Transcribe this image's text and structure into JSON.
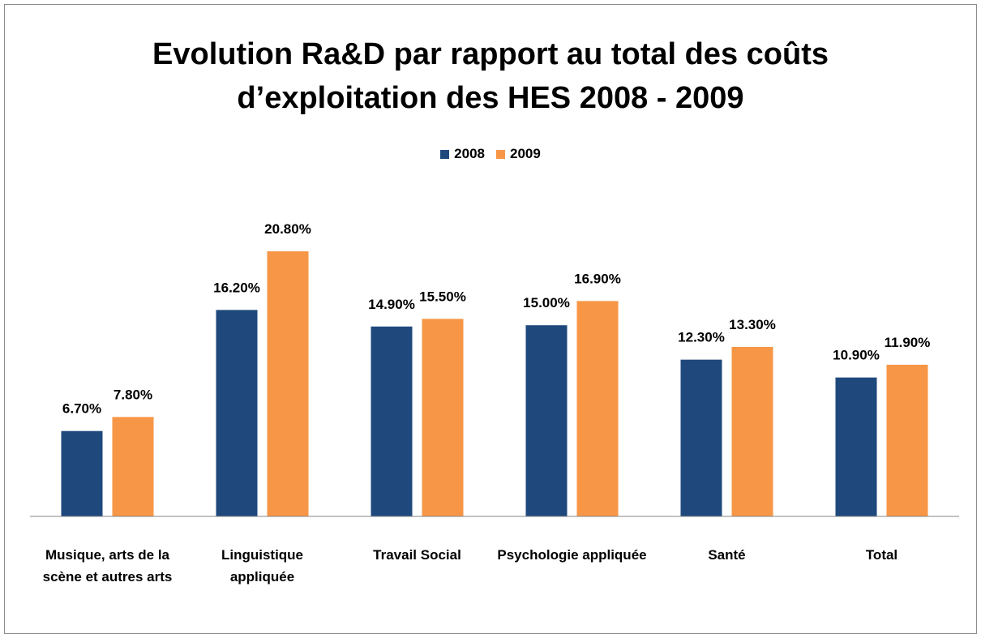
{
  "chart_data": {
    "type": "bar",
    "title": "Evolution Ra&D par rapport au total des coûts d’exploitation des HES 2008 - 2009",
    "categories": [
      "Musique, arts de la scène et autres arts",
      "Linguistique appliquée",
      "Travail Social",
      "Psychologie appliquée",
      "Santé",
      "Total"
    ],
    "series": [
      {
        "name": "2008",
        "color": "#1f497d",
        "values": [
          6.7,
          16.2,
          14.9,
          15.0,
          12.3,
          10.9
        ],
        "value_labels": [
          "6.70%",
          "16.20%",
          "14.90%",
          "15.00%",
          "12.30%",
          "10.90%"
        ]
      },
      {
        "name": "2009",
        "color": "#f79646",
        "values": [
          7.8,
          20.8,
          15.5,
          16.9,
          13.3,
          11.9
        ],
        "value_labels": [
          "7.80%",
          "20.80%",
          "15.50%",
          "16.90%",
          "13.30%",
          "11.90%"
        ]
      }
    ],
    "ylim": [
      0,
      25
    ],
    "legend": "top"
  }
}
